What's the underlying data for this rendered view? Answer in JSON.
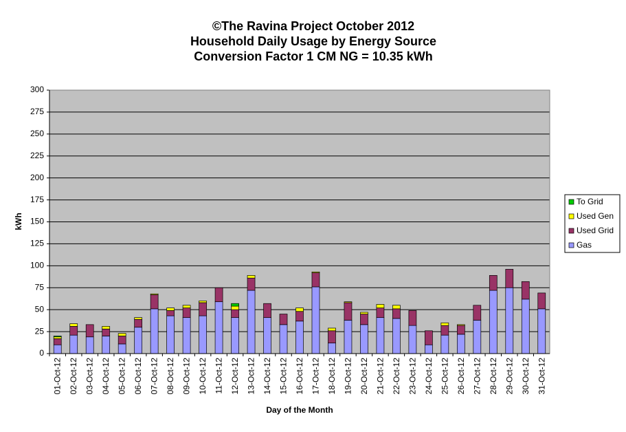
{
  "chart_data": {
    "type": "stacked-bar",
    "title": [
      "©The Ravina Project October 2012",
      "Household Daily Usage by Energy Source",
      "Conversion Factor 1 CM NG = 10.35 kWh"
    ],
    "y_label": "kWh",
    "x_label": "Day of the Month",
    "categories": [
      "01-Oct-12",
      "02-Oct-12",
      "03-Oct-12",
      "04-Oct-12",
      "05-Oct-12",
      "06-Oct-12",
      "07-Oct-12",
      "08-Oct-12",
      "09-Oct-12",
      "10-Oct-12",
      "11-Oct-12",
      "12-Oct-12",
      "13-Oct-12",
      "14-Oct-12",
      "15-Oct-12",
      "16-Oct-12",
      "17-Oct-12",
      "18-Oct-12",
      "19-Oct-12",
      "20-Oct-12",
      "21-Oct-12",
      "22-Oct-12",
      "23-Oct-12",
      "24-Oct-12",
      "25-Oct-12",
      "26-Oct-12",
      "27-Oct-12",
      "28-Oct-12",
      "29-Oct-12",
      "30-Oct-12",
      "31-Oct-12"
    ],
    "series": [
      {
        "name": "Gas",
        "color": "#9999ff",
        "values": [
          10,
          21,
          19,
          20,
          11,
          30,
          51,
          43,
          41,
          43,
          59,
          41,
          72,
          41,
          33,
          37,
          76,
          12,
          38,
          33,
          41,
          40,
          32,
          10,
          21,
          22,
          38,
          72,
          75,
          62,
          51
        ]
      },
      {
        "name": "Used Grid",
        "color": "#993366",
        "values": [
          7,
          10,
          14,
          8,
          9,
          9,
          16,
          6,
          11,
          15,
          16,
          9,
          14,
          16,
          12,
          11,
          16,
          14,
          20,
          12,
          11,
          11,
          17,
          16,
          11,
          10,
          17,
          17,
          21,
          20,
          18
        ]
      },
      {
        "name": "Used Gen",
        "color": "#ffff00",
        "values": [
          2,
          3,
          0,
          3,
          3,
          2,
          1,
          3,
          3,
          2,
          0,
          4,
          3,
          0,
          0,
          4,
          1,
          3,
          1,
          2,
          4,
          4,
          0,
          0,
          3,
          1,
          0,
          0,
          0,
          0,
          0
        ]
      },
      {
        "name": "To Grid",
        "color": "#00cc00",
        "values": [
          1,
          0,
          0,
          0,
          0,
          0,
          0,
          0,
          0,
          0,
          0,
          3,
          0,
          0,
          0,
          0,
          0,
          0,
          0,
          0,
          0,
          0,
          0,
          0,
          0,
          0,
          0,
          0,
          0,
          0,
          0
        ]
      }
    ],
    "ylim": [
      0,
      300
    ],
    "yticks": [
      0,
      25,
      50,
      75,
      100,
      125,
      150,
      175,
      200,
      225,
      250,
      275,
      300
    ],
    "grid": true,
    "legend": "right"
  }
}
